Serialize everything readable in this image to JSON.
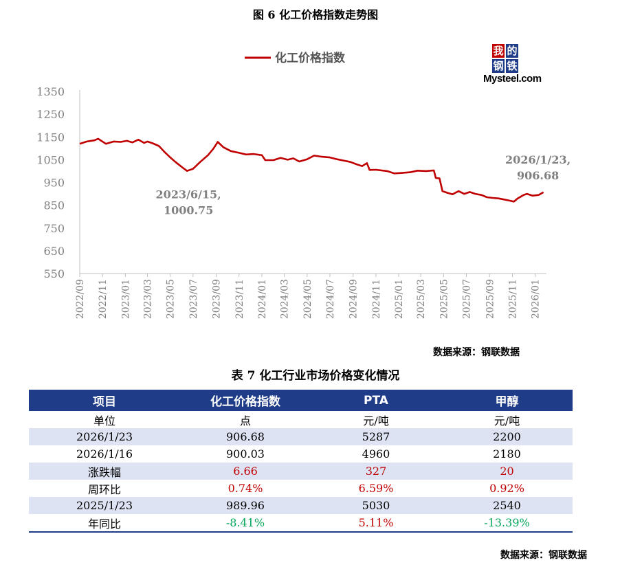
{
  "figure_title": "图 6 化工价格指数走势图",
  "source_chart": "数据来源：钢联数据",
  "logo": {
    "chars": [
      "我",
      "的",
      "钢",
      "铁"
    ],
    "word": "Mysteel.com"
  },
  "chart_data": {
    "type": "line",
    "title": "",
    "legend_position": "top",
    "series": [
      {
        "name": "化工价格指数",
        "color": "#c00000",
        "points": [
          [
            "2022-09-01",
            1120
          ],
          [
            "2022-09-20",
            1130
          ],
          [
            "2022-10-10",
            1135
          ],
          [
            "2022-10-20",
            1142
          ],
          [
            "2022-11-10",
            1120
          ],
          [
            "2022-12-01",
            1130
          ],
          [
            "2022-12-20",
            1128
          ],
          [
            "2023-01-05",
            1133
          ],
          [
            "2023-01-20",
            1126
          ],
          [
            "2023-02-05",
            1138
          ],
          [
            "2023-02-20",
            1124
          ],
          [
            "2023-03-01",
            1130
          ],
          [
            "2023-03-15",
            1122
          ],
          [
            "2023-04-01",
            1110
          ],
          [
            "2023-04-15",
            1085
          ],
          [
            "2023-05-01",
            1060
          ],
          [
            "2023-05-15",
            1040
          ],
          [
            "2023-06-01",
            1018
          ],
          [
            "2023-06-15",
            1000.75
          ],
          [
            "2023-07-01",
            1010
          ],
          [
            "2023-07-20",
            1040
          ],
          [
            "2023-08-10",
            1070
          ],
          [
            "2023-08-25",
            1100
          ],
          [
            "2023-09-05",
            1128
          ],
          [
            "2023-09-20",
            1105
          ],
          [
            "2023-10-10",
            1088
          ],
          [
            "2023-11-01",
            1080
          ],
          [
            "2023-11-20",
            1073
          ],
          [
            "2023-12-10",
            1075
          ],
          [
            "2024-01-01",
            1070
          ],
          [
            "2024-01-10",
            1048
          ],
          [
            "2024-02-01",
            1048
          ],
          [
            "2024-02-20",
            1058
          ],
          [
            "2024-03-10",
            1050
          ],
          [
            "2024-03-25",
            1056
          ],
          [
            "2024-04-10",
            1042
          ],
          [
            "2024-05-01",
            1052
          ],
          [
            "2024-05-20",
            1068
          ],
          [
            "2024-06-10",
            1063
          ],
          [
            "2024-07-01",
            1060
          ],
          [
            "2024-07-20",
            1052
          ],
          [
            "2024-08-10",
            1045
          ],
          [
            "2024-08-25",
            1040
          ],
          [
            "2024-09-10",
            1030
          ],
          [
            "2024-09-25",
            1022
          ],
          [
            "2024-10-08",
            1035
          ],
          [
            "2024-10-15",
            1005
          ],
          [
            "2024-11-01",
            1006
          ],
          [
            "2024-12-01",
            1000
          ],
          [
            "2024-12-20",
            990
          ],
          [
            "2025-01-10",
            992
          ],
          [
            "2025-02-01",
            995
          ],
          [
            "2025-02-20",
            1002
          ],
          [
            "2025-03-15",
            1000
          ],
          [
            "2025-04-05",
            1003
          ],
          [
            "2025-04-10",
            970
          ],
          [
            "2025-04-20",
            968
          ],
          [
            "2025-04-28",
            912
          ],
          [
            "2025-05-10",
            905
          ],
          [
            "2025-05-25",
            898
          ],
          [
            "2025-06-10",
            912
          ],
          [
            "2025-06-25",
            900
          ],
          [
            "2025-07-10",
            908
          ],
          [
            "2025-07-25",
            900
          ],
          [
            "2025-08-10",
            895
          ],
          [
            "2025-08-25",
            885
          ],
          [
            "2025-09-10",
            882
          ],
          [
            "2025-09-25",
            880
          ],
          [
            "2025-10-10",
            875
          ],
          [
            "2025-10-25",
            870
          ],
          [
            "2025-11-05",
            866
          ],
          [
            "2025-11-15",
            880
          ],
          [
            "2025-12-01",
            895
          ],
          [
            "2025-12-10",
            900
          ],
          [
            "2025-12-25",
            892
          ],
          [
            "2026-01-10",
            895
          ],
          [
            "2026-01-23",
            906.68
          ]
        ]
      }
    ],
    "y_axis": {
      "min": 550,
      "max": 1350,
      "ticks": [
        550,
        650,
        750,
        850,
        950,
        1050,
        1150,
        1250,
        1350
      ]
    },
    "x_axis": {
      "min": "2022-09-01",
      "max": "2026-01-31",
      "ticks": [
        "2022/09",
        "2022/11",
        "2023/01",
        "2023/03",
        "2023/05",
        "2023/07",
        "2023/09",
        "2023/11",
        "2024/01",
        "2024/03",
        "2024/05",
        "2024/07",
        "2024/09",
        "2024/11",
        "2025/01",
        "2025/03",
        "2025/05",
        "2025/07",
        "2025/09",
        "2025/11",
        "2026/01"
      ]
    },
    "grid": false,
    "annotations": [
      {
        "date": "2023-06-15",
        "value": 1000.75,
        "line1": "2023/6/15,",
        "line2": "1000.75"
      },
      {
        "date": "2026-01-23",
        "value": 906.68,
        "line1": "2026/1/23,",
        "line2": "906.68"
      }
    ]
  },
  "table": {
    "title": "表 7 化工行业市场价格变化情况",
    "headers": [
      "项目",
      "化工价格指数",
      "PTA",
      "甲醇"
    ],
    "rows": [
      {
        "cells": [
          "单位",
          "点",
          "元/吨",
          "元/吨"
        ],
        "colors": [
          "",
          "",
          "",
          ""
        ],
        "shade": false
      },
      {
        "cells": [
          "2026/1/23",
          "906.68",
          "5287",
          "2200"
        ],
        "colors": [
          "",
          "",
          "",
          ""
        ],
        "shade": true
      },
      {
        "cells": [
          "2026/1/16",
          "900.03",
          "4960",
          "2180"
        ],
        "colors": [
          "",
          "",
          "",
          ""
        ],
        "shade": false
      },
      {
        "cells": [
          "涨跌幅",
          "6.66",
          "327",
          "20"
        ],
        "colors": [
          "",
          "red",
          "red",
          "red"
        ],
        "shade": true
      },
      {
        "cells": [
          "周环比",
          "0.74%",
          "6.59%",
          "0.92%"
        ],
        "colors": [
          "",
          "red",
          "red",
          "red"
        ],
        "shade": false
      },
      {
        "cells": [
          "2025/1/23",
          "989.96",
          "5030",
          "2540"
        ],
        "colors": [
          "",
          "",
          "",
          ""
        ],
        "shade": true
      },
      {
        "cells": [
          "年同比",
          "-8.41%",
          "5.11%",
          "-13.39%"
        ],
        "colors": [
          "",
          "green",
          "red",
          "green"
        ],
        "shade": false
      }
    ],
    "source": "数据来源：钢联数据"
  }
}
